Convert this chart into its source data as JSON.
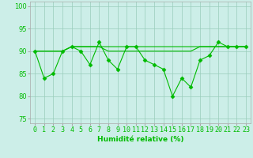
{
  "line1": {
    "x": [
      0,
      1,
      2,
      3,
      4,
      5,
      6,
      7,
      8,
      9,
      10,
      11,
      12,
      13,
      14,
      15,
      16,
      17,
      18,
      19,
      20,
      21,
      22,
      23
    ],
    "y": [
      90,
      84,
      85,
      90,
      91,
      90,
      87,
      92,
      88,
      86,
      91,
      91,
      88,
      87,
      86,
      80,
      84,
      82,
      88,
      89,
      92,
      91,
      91,
      91
    ]
  },
  "line2": {
    "x": [
      0,
      1,
      2,
      3,
      4,
      5,
      6,
      7,
      8,
      9,
      10,
      11,
      12,
      13,
      14,
      15,
      16,
      17,
      18,
      19,
      20,
      21,
      22,
      23
    ],
    "y": [
      90,
      90,
      90,
      90,
      91,
      91,
      91,
      91,
      91,
      91,
      91,
      91,
      91,
      91,
      91,
      91,
      91,
      91,
      91,
      91,
      91,
      91,
      91,
      91
    ]
  },
  "line3": {
    "x": [
      0,
      1,
      2,
      3,
      4,
      5,
      6,
      7,
      8,
      9,
      10,
      11,
      12,
      13,
      14,
      15,
      16,
      17,
      18,
      19,
      20,
      21,
      22,
      23
    ],
    "y": [
      90,
      90,
      90,
      90,
      91,
      91,
      91,
      91,
      90,
      90,
      90,
      90,
      90,
      90,
      90,
      90,
      90,
      90,
      91,
      91,
      91,
      91,
      91,
      91
    ]
  },
  "line_color": "#00bb00",
  "marker": "D",
  "marker_size": 2.5,
  "background_color": "#cceee8",
  "grid_color": "#99ccbb",
  "xlabel": "Humidité relative (%)",
  "xlim": [
    -0.5,
    23.5
  ],
  "ylim": [
    74,
    101
  ],
  "yticks": [
    75,
    80,
    85,
    90,
    95,
    100
  ],
  "xticks": [
    0,
    1,
    2,
    3,
    4,
    5,
    6,
    7,
    8,
    9,
    10,
    11,
    12,
    13,
    14,
    15,
    16,
    17,
    18,
    19,
    20,
    21,
    22,
    23
  ],
  "xlabel_fontsize": 6.5,
  "tick_fontsize": 6.0,
  "line_width": 0.8
}
